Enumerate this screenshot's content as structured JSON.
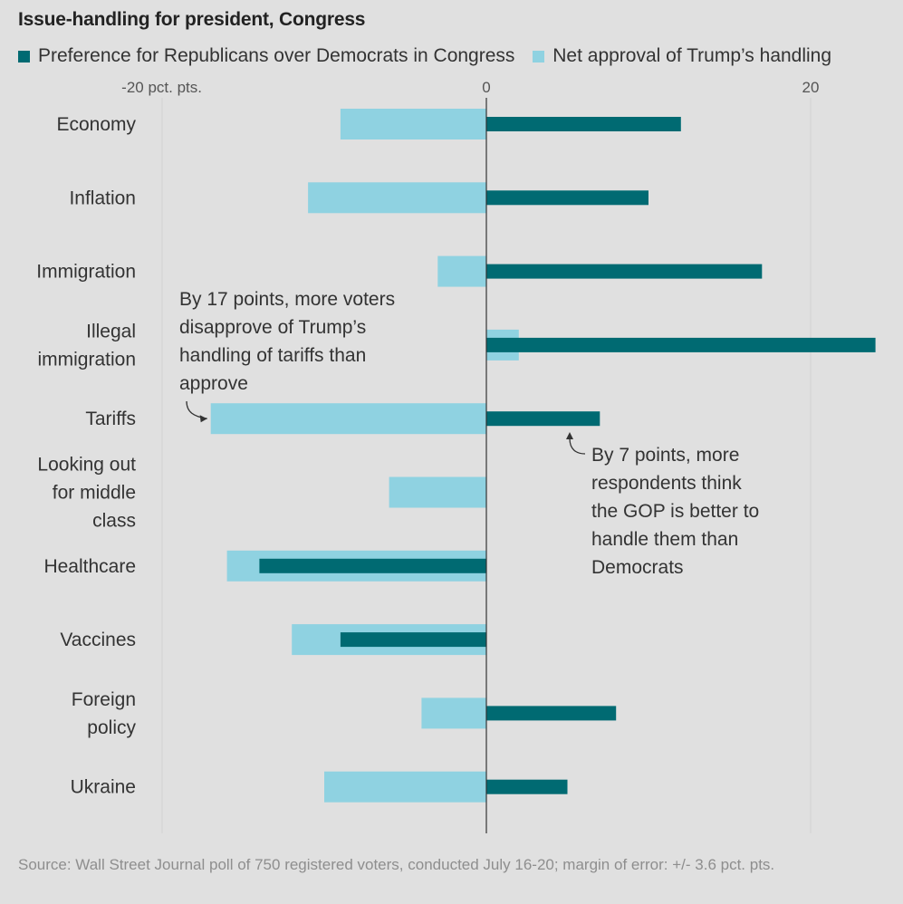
{
  "header": {
    "title": "Issue-handling for president, Congress"
  },
  "legend": {
    "items": [
      {
        "label": "Preference for Republicans over Democrats in Congress",
        "color": "#006a72"
      },
      {
        "label": "Net approval of Trump’s handling",
        "color": "#8fd2e1"
      }
    ]
  },
  "chart_data": {
    "type": "bar",
    "orientation": "horizontal",
    "title": "Issue-handling for president, Congress",
    "categories": [
      "Economy",
      "Inflation",
      "Immigration",
      "Illegal immigration",
      "Tariffs",
      "Looking out for middle class",
      "Healthcare",
      "Vaccines",
      "Foreign policy",
      "Ukraine"
    ],
    "category_lines": [
      [
        "Economy"
      ],
      [
        "Inflation"
      ],
      [
        "Immigration"
      ],
      [
        "Illegal",
        "immigration"
      ],
      [
        "Tariffs"
      ],
      [
        "Looking out",
        "for middle",
        "class"
      ],
      [
        "Healthcare"
      ],
      [
        "Vaccines"
      ],
      [
        "Foreign",
        "policy"
      ],
      [
        "Ukraine"
      ]
    ],
    "series": [
      {
        "name": "Net approval of Trump’s handling",
        "color": "#8fd2e1",
        "values": [
          -9,
          -11,
          -3,
          2,
          -17,
          -6,
          -16,
          -12,
          -4,
          -10
        ]
      },
      {
        "name": "Preference for Republicans over Democrats in Congress",
        "color": "#006a72",
        "values": [
          12,
          10,
          17,
          24,
          7,
          0,
          -14,
          -9,
          8,
          5
        ]
      }
    ],
    "xlim": [
      -20,
      24
    ],
    "xticks": [
      {
        "value": -20,
        "label": "-20 pct. pts."
      },
      {
        "value": 0,
        "label": "0"
      },
      {
        "value": 20,
        "label": "20"
      }
    ],
    "annotations": [
      {
        "category": "Tariffs",
        "series": "Net approval of Trump’s handling",
        "lines": [
          "By 17 points, more voters",
          "disapprove of Trump’s",
          "handling of tariffs than",
          "approve"
        ]
      },
      {
        "category": "Tariffs",
        "series": "Preference for Republicans over Democrats in Congress",
        "lines": [
          "By 7 points, more",
          "respondents think",
          "the GOP is better to",
          "handle them than",
          "Democrats"
        ]
      }
    ]
  },
  "footer": {
    "source": "Source: Wall Street Journal poll of 750 registered voters, conducted July 16-20; margin of error: +/- 3.6 pct. pts."
  }
}
